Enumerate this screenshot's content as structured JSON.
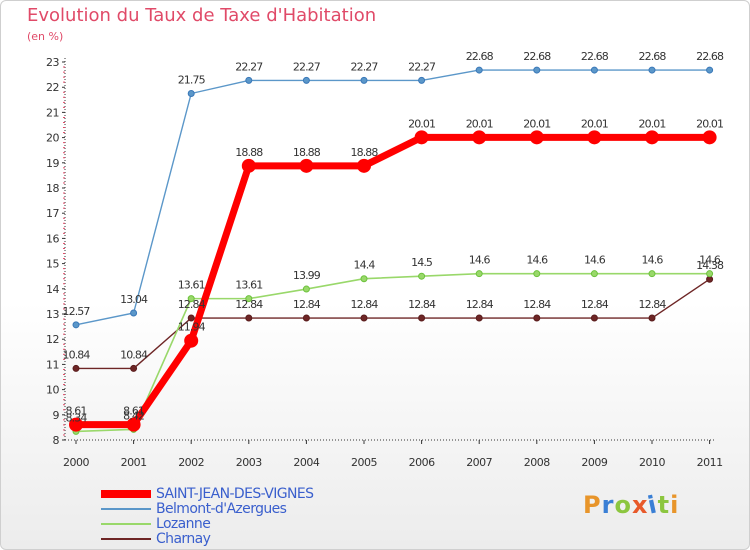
{
  "title": "Evolution du Taux de Taxe d'Habitation",
  "unit": "(en %)",
  "logo": {
    "text": "Proxiti",
    "colors": [
      "#e8952a",
      "#3a7fd5",
      "#8cc63f",
      "#e8592a",
      "#3a7fd5",
      "#8cc63f",
      "#e8952a"
    ]
  },
  "chart_data": {
    "type": "line",
    "title": "Evolution du Taux de Taxe d'Habitation",
    "ylabel": "(en %)",
    "xlabel": "",
    "x": [
      "2000",
      "2001",
      "2002",
      "2003",
      "2004",
      "2005",
      "2006",
      "2007",
      "2008",
      "2009",
      "2010",
      "2011"
    ],
    "ylim": [
      8,
      23
    ],
    "yticks": [
      8,
      9,
      10,
      11,
      12,
      13,
      14,
      15,
      16,
      17,
      18,
      19,
      20,
      21,
      22,
      23
    ],
    "grid": false,
    "legend_position": "bottom-left",
    "series": [
      {
        "name": "SAINT-JEAN-DES-VIGNES",
        "color": "#ff0000",
        "values": [
          8.61,
          8.61,
          11.94,
          18.88,
          18.88,
          18.88,
          20.01,
          20.01,
          20.01,
          20.01,
          20.01,
          20.01
        ],
        "labels": [
          "8.61",
          "8.61",
          "11.94",
          "18.88",
          "18.88",
          "18.88",
          "20.01",
          "20.01",
          "20.01",
          "20.01",
          "20.01",
          "20.01"
        ]
      },
      {
        "name": "Belmont-d'Azergues",
        "color": "#5b97c9",
        "values": [
          12.57,
          13.04,
          21.75,
          22.27,
          22.27,
          22.27,
          22.27,
          22.68,
          22.68,
          22.68,
          22.68,
          22.68
        ],
        "labels": [
          "12.57",
          "13.04",
          "21.75",
          "22.27",
          "22.27",
          "22.27",
          "22.27",
          "22.68",
          "22.68",
          "22.68",
          "22.68",
          "22.68"
        ]
      },
      {
        "name": "Lozanne",
        "color": "#99d86a",
        "values": [
          8.34,
          8.42,
          13.61,
          13.61,
          13.99,
          14.4,
          14.5,
          14.6,
          14.6,
          14.6,
          14.6,
          14.6
        ],
        "labels": [
          "8.34",
          "8.42",
          "13.61",
          "13.61",
          "13.99",
          "14.4",
          "14.5",
          "14.6",
          "14.6",
          "14.6",
          "14.6",
          "14.6"
        ]
      },
      {
        "name": "Charnay",
        "color": "#6e2626",
        "values": [
          10.84,
          10.84,
          12.84,
          12.84,
          12.84,
          12.84,
          12.84,
          12.84,
          12.84,
          12.84,
          12.84,
          14.38
        ],
        "labels": [
          "10.84",
          "10.84",
          "12.84",
          "12.84",
          "12.84",
          "12.84",
          "12.84",
          "12.84",
          "12.84",
          "12.84",
          "12.84",
          "14.38"
        ]
      }
    ]
  }
}
